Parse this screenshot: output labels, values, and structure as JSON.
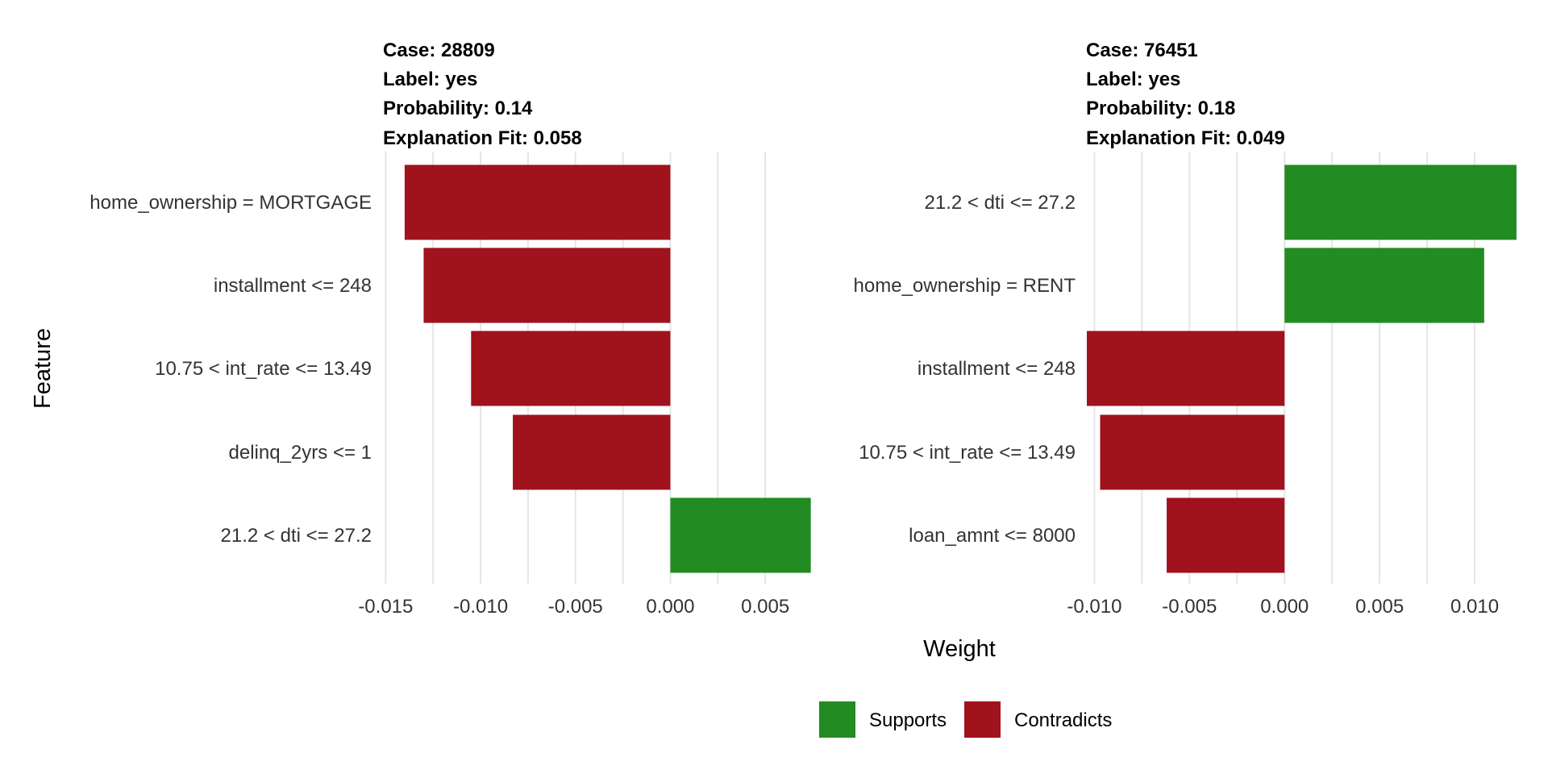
{
  "chart_data": {
    "type": "bar",
    "orientation": "horizontal",
    "xlabel": "Weight",
    "ylabel": "Feature",
    "legend": {
      "position": "bottom",
      "entries": [
        {
          "name": "Supports",
          "color": "#228B22"
        },
        {
          "name": "Contradicts",
          "color": "#A0121C"
        }
      ]
    },
    "panels": [
      {
        "title_lines": [
          "Case: 28809",
          "Label: yes",
          "Probability: 0.14",
          "Explanation Fit: 0.058"
        ],
        "xlim": [
          -0.0151,
          0.0075
        ],
        "ticks": [
          -0.015,
          -0.01,
          -0.005,
          0.0,
          0.005
        ],
        "tick_labels": [
          "-0.015",
          "-0.010",
          "-0.005",
          "0.000",
          "0.005"
        ],
        "grid": true,
        "bars": [
          {
            "feature": "home_ownership = MORTGAGE",
            "value": -0.014,
            "type": "Contradicts"
          },
          {
            "feature": "installment <= 248",
            "value": -0.013,
            "type": "Contradicts"
          },
          {
            "feature": "10.75 < int_rate <= 13.49",
            "value": -0.0105,
            "type": "Contradicts"
          },
          {
            "feature": "delinq_2yrs <= 1",
            "value": -0.0083,
            "type": "Contradicts"
          },
          {
            "feature": "21.2 < dti <= 27.2",
            "value": 0.0074,
            "type": "Supports"
          }
        ]
      },
      {
        "title_lines": [
          "Case: 76451",
          "Label: yes",
          "Probability: 0.18",
          "Explanation Fit: 0.049"
        ],
        "xlim": [
          -0.0104,
          0.0125
        ],
        "ticks": [
          -0.01,
          -0.005,
          0.0,
          0.005,
          0.01
        ],
        "tick_labels": [
          "-0.010",
          "-0.005",
          "0.000",
          "0.005",
          "0.010"
        ],
        "grid": true,
        "bars": [
          {
            "feature": "21.2 < dti <= 27.2",
            "value": 0.0122,
            "type": "Supports"
          },
          {
            "feature": "home_ownership = RENT",
            "value": 0.0105,
            "type": "Supports"
          },
          {
            "feature": "installment <= 248",
            "value": -0.0104,
            "type": "Contradicts"
          },
          {
            "feature": "10.75 < int_rate <= 13.49",
            "value": -0.0097,
            "type": "Contradicts"
          },
          {
            "feature": "loan_amnt <= 8000",
            "value": -0.0062,
            "type": "Contradicts"
          }
        ]
      }
    ]
  }
}
